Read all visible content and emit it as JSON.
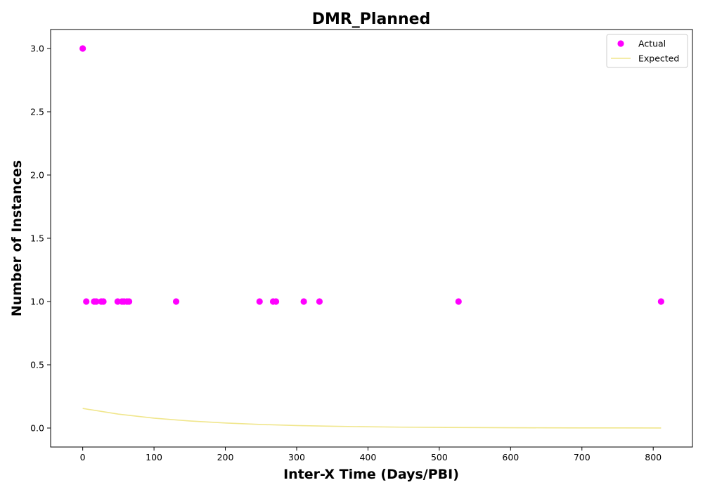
{
  "chart_data": {
    "type": "scatter",
    "title": "DMR_Planned",
    "xlabel": "Inter-X Time (Days/PBI)",
    "ylabel": "Number of Instances",
    "xlim": [
      -45,
      855
    ],
    "ylim": [
      -0.15,
      3.15
    ],
    "x_ticks": [
      0,
      100,
      200,
      300,
      400,
      500,
      600,
      700,
      800
    ],
    "y_ticks": [
      0.0,
      0.5,
      1.0,
      1.5,
      2.0,
      2.5,
      3.0
    ],
    "x_tick_labels": [
      "0",
      "100",
      "200",
      "300",
      "400",
      "500",
      "600",
      "700",
      "800"
    ],
    "y_tick_labels": [
      "0.0",
      "0.5",
      "1.0",
      "1.5",
      "2.0",
      "2.5",
      "3.0"
    ],
    "legend_position": "top-right",
    "series": [
      {
        "name": "Actual",
        "kind": "scatter",
        "color": "#ff00ff",
        "points": [
          {
            "x": 0,
            "y": 3
          },
          {
            "x": 5,
            "y": 1
          },
          {
            "x": 16,
            "y": 1
          },
          {
            "x": 19,
            "y": 1
          },
          {
            "x": 26,
            "y": 1
          },
          {
            "x": 29,
            "y": 1
          },
          {
            "x": 49,
            "y": 1
          },
          {
            "x": 55,
            "y": 1
          },
          {
            "x": 58,
            "y": 1
          },
          {
            "x": 62,
            "y": 1
          },
          {
            "x": 65,
            "y": 1
          },
          {
            "x": 131,
            "y": 1
          },
          {
            "x": 248,
            "y": 1
          },
          {
            "x": 267,
            "y": 1
          },
          {
            "x": 271,
            "y": 1
          },
          {
            "x": 310,
            "y": 1
          },
          {
            "x": 332,
            "y": 1
          },
          {
            "x": 527,
            "y": 1
          },
          {
            "x": 811,
            "y": 1
          }
        ]
      },
      {
        "name": "Expected",
        "kind": "line",
        "color": "#f0e68c",
        "points": [
          {
            "x": 0,
            "y": 0.155
          },
          {
            "x": 50,
            "y": 0.11
          },
          {
            "x": 100,
            "y": 0.078
          },
          {
            "x": 150,
            "y": 0.056
          },
          {
            "x": 200,
            "y": 0.04
          },
          {
            "x": 250,
            "y": 0.028
          },
          {
            "x": 300,
            "y": 0.02
          },
          {
            "x": 350,
            "y": 0.014
          },
          {
            "x": 400,
            "y": 0.01
          },
          {
            "x": 450,
            "y": 0.007
          },
          {
            "x": 500,
            "y": 0.005
          },
          {
            "x": 550,
            "y": 0.0036
          },
          {
            "x": 600,
            "y": 0.0026
          },
          {
            "x": 650,
            "y": 0.0018
          },
          {
            "x": 700,
            "y": 0.0013
          },
          {
            "x": 750,
            "y": 0.0009
          },
          {
            "x": 811,
            "y": 0.0006
          }
        ]
      }
    ]
  }
}
